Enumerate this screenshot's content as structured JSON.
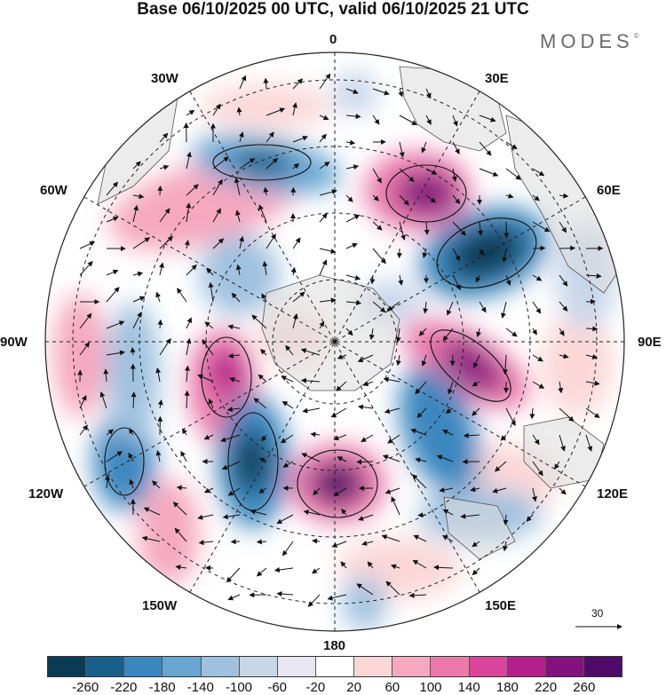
{
  "title": "Base 06/10/2025 00 UTC, valid 06/10/2025 21 UTC",
  "logo": {
    "text": "MODES",
    "mark": "©"
  },
  "longitude_labels": [
    "0",
    "30E",
    "60E",
    "90E",
    "120E",
    "150E",
    "180",
    "150W",
    "120W",
    "90W",
    "60W",
    "30W"
  ],
  "vector_scale": {
    "value": "30"
  },
  "colorbar": {
    "colors": [
      "#0b3a55",
      "#185f8c",
      "#3a87bf",
      "#67a6d1",
      "#9fc1df",
      "#c8d6ea",
      "#e7e6f1",
      "#ffffff",
      "#fbd7d8",
      "#f5a8c0",
      "#ec79ab",
      "#d9459a",
      "#b21f8a",
      "#82127d",
      "#4f0a6a"
    ],
    "ticks": [
      "-260",
      "-220",
      "-180",
      "-140",
      "-100",
      "-60",
      "-20",
      "20",
      "60",
      "100",
      "140",
      "180",
      "220",
      "260"
    ]
  }
}
